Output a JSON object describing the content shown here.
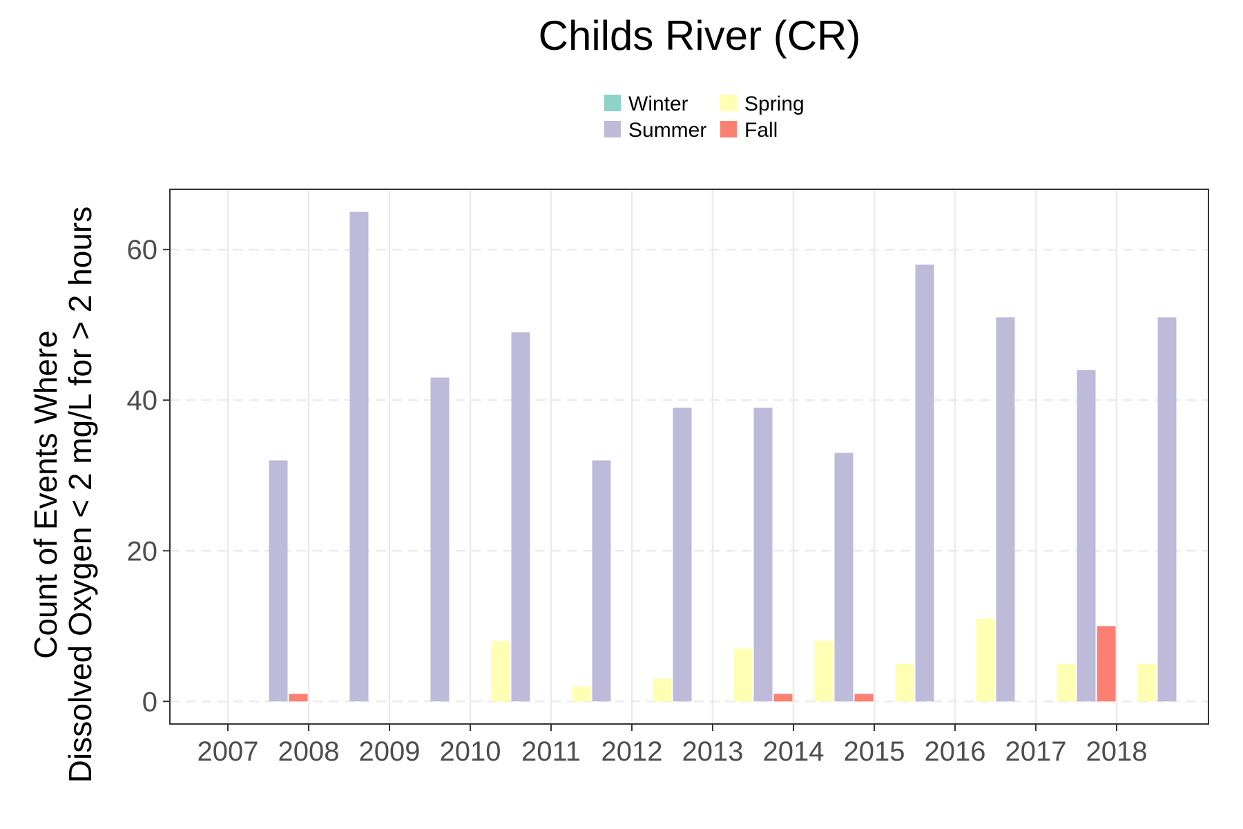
{
  "chart_data": {
    "type": "bar",
    "title": "Childs River (CR)",
    "ylabel_lines": [
      "Count of Events Where",
      "Dissolved Oxygen < 2  mg/L for > 2 hours"
    ],
    "xlabel": "",
    "categories": [
      "2007",
      "2008",
      "2009",
      "2010",
      "2011",
      "2012",
      "2013",
      "2014",
      "2015",
      "2016",
      "2017",
      "2018"
    ],
    "ylim": [
      -3,
      68
    ],
    "yticks": [
      0,
      20,
      40,
      60
    ],
    "grid": true,
    "legend_position": "top",
    "series": [
      {
        "name": "Winter",
        "color": "#8dd3c7",
        "values": [
          0,
          0,
          0,
          0,
          0,
          0,
          0,
          0,
          0,
          0,
          0,
          0
        ]
      },
      {
        "name": "Spring",
        "color": "#ffffb3",
        "values": [
          0,
          0,
          0,
          8,
          2,
          3,
          7,
          8,
          5,
          11,
          5,
          5
        ]
      },
      {
        "name": "Summer",
        "color": "#bebada",
        "values": [
          32,
          65,
          43,
          49,
          32,
          39,
          39,
          33,
          58,
          51,
          44,
          51
        ]
      },
      {
        "name": "Fall",
        "color": "#fb8072",
        "values": [
          1,
          0,
          0,
          0,
          0,
          0,
          1,
          1,
          0,
          0,
          10,
          0
        ]
      }
    ]
  }
}
